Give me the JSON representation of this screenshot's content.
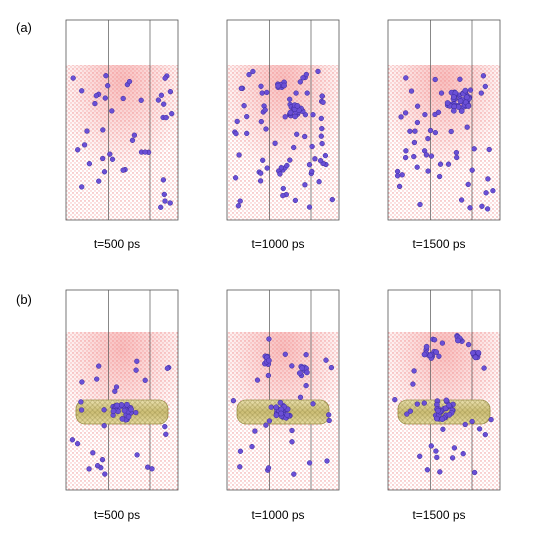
{
  "rows": [
    {
      "label": "(a)",
      "panels": [
        {
          "caption": "t=500 ps",
          "has_tube": false,
          "particles": 45,
          "cluster": "none"
        },
        {
          "caption": "t=1000 ps",
          "has_tube": false,
          "particles": 75,
          "cluster": "medium"
        },
        {
          "caption": "t=1500 ps",
          "has_tube": false,
          "particles": 55,
          "cluster": "large"
        }
      ]
    },
    {
      "label": "(b)",
      "panels": [
        {
          "caption": "t=500 ps",
          "has_tube": true,
          "particles": 30,
          "cluster": "on-tube"
        },
        {
          "caption": "t=1000 ps",
          "has_tube": true,
          "particles": 30,
          "cluster": "on-tube-plus-small"
        },
        {
          "caption": "t=1500 ps",
          "has_tube": true,
          "particles": 30,
          "cluster": "on-tube-plus-several"
        }
      ]
    }
  ],
  "colors": {
    "water": "#f2b3b3",
    "water_dense": "#f08a8a",
    "particle": "#6a4fd6",
    "particle_edge": "#3a2a9a",
    "tube": "#d9cc8f",
    "tube_edge": "#9a8f4a",
    "box_line": "#555555"
  }
}
